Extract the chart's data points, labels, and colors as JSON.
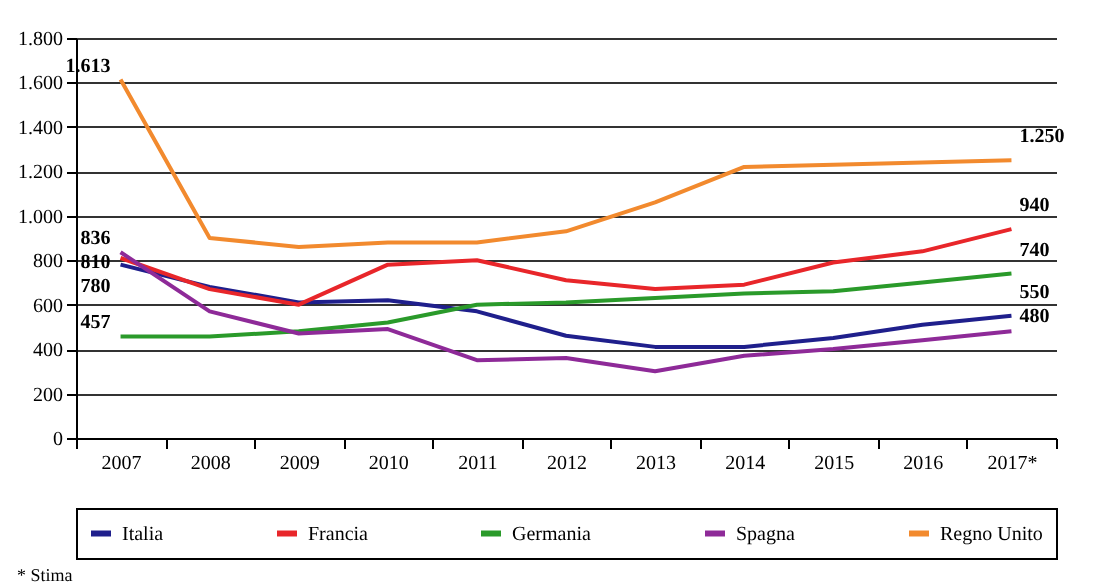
{
  "chart_data": {
    "type": "line",
    "categories": [
      "2007",
      "2008",
      "2009",
      "2010",
      "2011",
      "2012",
      "2013",
      "2014",
      "2015",
      "2016",
      "2017*"
    ],
    "series": [
      {
        "name": "Italia",
        "color": "#1f1f8c",
        "values": [
          780,
          680,
          610,
          620,
          570,
          460,
          410,
          410,
          450,
          510,
          550
        ],
        "value_labels": [
          "780",
          null,
          null,
          null,
          null,
          null,
          null,
          null,
          null,
          null,
          "550"
        ]
      },
      {
        "name": "Francia",
        "color": "#e8262a",
        "values": [
          810,
          670,
          600,
          780,
          800,
          710,
          670,
          690,
          790,
          840,
          940
        ],
        "value_labels": [
          "810",
          null,
          null,
          null,
          null,
          null,
          null,
          null,
          null,
          null,
          "940"
        ]
      },
      {
        "name": "Germania",
        "color": "#2a9a2a",
        "values": [
          457,
          457,
          480,
          520,
          600,
          610,
          630,
          650,
          660,
          700,
          740
        ],
        "value_labels": [
          "457",
          null,
          null,
          null,
          null,
          null,
          null,
          null,
          null,
          null,
          "740"
        ]
      },
      {
        "name": "Spagna",
        "color": "#8e2a98",
        "values": [
          836,
          570,
          470,
          490,
          350,
          360,
          300,
          370,
          400,
          440,
          480
        ],
        "value_labels": [
          "836",
          null,
          null,
          null,
          null,
          null,
          null,
          null,
          null,
          null,
          "480"
        ]
      },
      {
        "name": "Regno Unito",
        "color": "#f28a2e",
        "values": [
          1613,
          900,
          860,
          880,
          880,
          930,
          1060,
          1220,
          1230,
          1240,
          1250
        ],
        "value_labels": [
          "1.613",
          null,
          null,
          null,
          null,
          null,
          null,
          null,
          null,
          null,
          "1.250"
        ]
      }
    ],
    "ylim": [
      0,
      1800
    ],
    "yticks": [
      0,
      200,
      400,
      600,
      800,
      {
        "value": 1000,
        "label": "1.000"
      },
      {
        "value": 1200,
        "label": "1.200"
      },
      {
        "value": 1400,
        "label": "1.400"
      },
      {
        "value": 1600,
        "label": "1.600"
      },
      {
        "value": 1800,
        "label": "1.800"
      }
    ],
    "grid": "y",
    "legend": "bottom",
    "annotations": [
      "* Stima"
    ]
  }
}
